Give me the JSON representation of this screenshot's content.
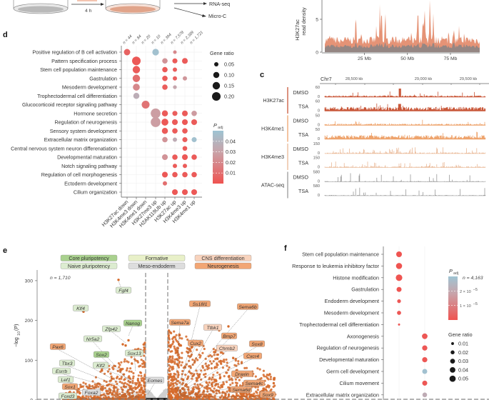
{
  "schematic": {
    "time_label": "4 h",
    "outputs": [
      "RNA-seq",
      "Micro-C"
    ]
  },
  "chart_data": [
    {
      "panel": "",
      "type": "area",
      "ylabel": [
        "H3K27ac",
        "read density"
      ],
      "yticks": [
        "0",
        "5"
      ],
      "ytick_values": [
        0,
        5
      ],
      "xticks": [
        "25 Mb",
        "50 Mb",
        "75 Mb"
      ],
      "xtick_values": [
        25,
        50,
        75
      ],
      "xlim": [
        2,
        92
      ],
      "colors": {
        "treated": "#e0805e",
        "control": "#8c8585"
      }
    },
    {
      "panel": "c",
      "type": "genome-tracks",
      "chrom": "Chr7",
      "xticks": [
        "28,500 kb",
        "29,000 kb",
        "29,500 kb"
      ],
      "groups": [
        {
          "mark": "H3K27ac",
          "color": "#c9583a",
          "tracks": [
            {
              "condition": "DMSO",
              "max": "60",
              "min": "0"
            },
            {
              "condition": "TSA",
              "max": "60",
              "min": "0"
            }
          ]
        },
        {
          "mark": "H3K4me1",
          "color": "#eea36c",
          "tracks": [
            {
              "condition": "DMSO",
              "max": "50",
              "min": "0"
            },
            {
              "condition": "TSA",
              "max": "50",
              "min": "0"
            }
          ]
        },
        {
          "mark": "H3K4me3",
          "color": "#e9b896",
          "tracks": [
            {
              "condition": "DMSO",
              "max": "150",
              "min": "0"
            },
            {
              "condition": "TSA",
              "max": "150",
              "min": "0"
            }
          ]
        },
        {
          "mark": "ATAC-seq",
          "color": "#9a9a9a",
          "tracks": [
            {
              "condition": "DMSO",
              "max": "580",
              "min": "0"
            },
            {
              "condition": "TSA",
              "max": "580",
              "min": "0"
            }
          ]
        }
      ]
    },
    {
      "panel": "d",
      "type": "scatter",
      "rows": [
        "Positive regulation of B cell activation",
        "Pattern specification process",
        "Stem cell population maintenance",
        "Gastrulation",
        "Mesoderm development",
        "Trophectodermal cell differentiation",
        "Glucocorticoid receptor signaling pathway",
        "Hormone secretion",
        "Regulation of neurogenesis",
        "Sensory system development",
        "Extracellular matrix organization",
        "Central nervous system neuron differenatiation",
        "Developmental maturation",
        "Notch signaling pathway",
        "Regulation of cell morphogenesis",
        "Ectoderm development",
        "Cilium organization"
      ],
      "columns": [
        "H3K27ac down",
        "H3K4me3 down",
        "H3K4me1 down",
        "H3K27me3 up",
        "H2AK119Ub up",
        "H3K27ac up",
        "H3K4me3 up",
        "H3K4me1 up"
      ],
      "n_labels": [
        "n = 44",
        "n = 84",
        "n = 20",
        "n = 10",
        "n = 394",
        "n = 7,578",
        "n = 2,389",
        "n = 1,721"
      ],
      "points": [
        {
          "row": 0,
          "col": 0,
          "gene_ratio": 0.11,
          "padj": 0.006
        },
        {
          "row": 0,
          "col": 3,
          "gene_ratio": 0.12,
          "padj": 0.048
        },
        {
          "row": 0,
          "col": 5,
          "gene_ratio": 0.035,
          "padj": 0.02
        },
        {
          "row": 1,
          "col": 1,
          "gene_ratio": 0.2,
          "padj": 0.002
        },
        {
          "row": 1,
          "col": 4,
          "gene_ratio": 0.08,
          "padj": 0.024
        },
        {
          "row": 1,
          "col": 5,
          "gene_ratio": 0.07,
          "padj": 0.003
        },
        {
          "row": 1,
          "col": 6,
          "gene_ratio": 0.09,
          "padj": 0.003
        },
        {
          "row": 2,
          "col": 1,
          "gene_ratio": 0.15,
          "padj": 0.003
        },
        {
          "row": 2,
          "col": 4,
          "gene_ratio": 0.08,
          "padj": 0.003
        },
        {
          "row": 2,
          "col": 5,
          "gene_ratio": 0.05,
          "padj": 0.004
        },
        {
          "row": 3,
          "col": 1,
          "gene_ratio": 0.15,
          "padj": 0.01
        },
        {
          "row": 3,
          "col": 4,
          "gene_ratio": 0.08,
          "padj": 0.003
        },
        {
          "row": 3,
          "col": 5,
          "gene_ratio": 0.05,
          "padj": 0.005
        },
        {
          "row": 3,
          "col": 6,
          "gene_ratio": 0.05,
          "padj": 0.025
        },
        {
          "row": 4,
          "col": 1,
          "gene_ratio": 0.13,
          "padj": 0.02
        },
        {
          "row": 4,
          "col": 4,
          "gene_ratio": 0.08,
          "padj": 0.004
        },
        {
          "row": 4,
          "col": 5,
          "gene_ratio": 0.04,
          "padj": 0.032
        },
        {
          "row": 5,
          "col": 1,
          "gene_ratio": 0.1,
          "padj": 0.036
        },
        {
          "row": 6,
          "col": 2,
          "gene_ratio": 0.17,
          "padj": 0.012
        },
        {
          "row": 7,
          "col": 3,
          "gene_ratio": 0.26,
          "padj": 0.028
        },
        {
          "row": 7,
          "col": 4,
          "gene_ratio": 0.1,
          "padj": 0.003
        },
        {
          "row": 7,
          "col": 5,
          "gene_ratio": 0.07,
          "padj": 0.004
        },
        {
          "row": 7,
          "col": 6,
          "gene_ratio": 0.09,
          "padj": 0.003
        },
        {
          "row": 7,
          "col": 7,
          "gene_ratio": 0.08,
          "padj": 0.027
        },
        {
          "row": 8,
          "col": 3,
          "gene_ratio": 0.26,
          "padj": 0.028
        },
        {
          "row": 8,
          "col": 4,
          "gene_ratio": 0.13,
          "padj": 0.002
        },
        {
          "row": 8,
          "col": 5,
          "gene_ratio": 0.09,
          "padj": 0.003
        },
        {
          "row": 8,
          "col": 6,
          "gene_ratio": 0.09,
          "padj": 0.002
        },
        {
          "row": 8,
          "col": 7,
          "gene_ratio": 0.09,
          "padj": 0.003
        },
        {
          "row": 9,
          "col": 4,
          "gene_ratio": 0.1,
          "padj": 0.003
        },
        {
          "row": 9,
          "col": 5,
          "gene_ratio": 0.08,
          "padj": 0.003
        },
        {
          "row": 9,
          "col": 6,
          "gene_ratio": 0.08,
          "padj": 0.003
        },
        {
          "row": 10,
          "col": 4,
          "gene_ratio": 0.08,
          "padj": 0.024
        },
        {
          "row": 10,
          "col": 5,
          "gene_ratio": 0.05,
          "padj": 0.035
        },
        {
          "row": 10,
          "col": 6,
          "gene_ratio": 0.07,
          "padj": 0.004
        },
        {
          "row": 10,
          "col": 7,
          "gene_ratio": 0.07,
          "padj": 0.048
        },
        {
          "row": 11,
          "col": 6,
          "gene_ratio": 0.06,
          "padj": 0.003
        },
        {
          "row": 12,
          "col": 4,
          "gene_ratio": 0.09,
          "padj": 0.024
        },
        {
          "row": 12,
          "col": 5,
          "gene_ratio": 0.08,
          "padj": 0.003
        },
        {
          "row": 12,
          "col": 6,
          "gene_ratio": 0.09,
          "padj": 0.002
        },
        {
          "row": 12,
          "col": 7,
          "gene_ratio": 0.08,
          "padj": 0.003
        },
        {
          "row": 13,
          "col": 5,
          "gene_ratio": 0.05,
          "padj": 0.003
        },
        {
          "row": 13,
          "col": 6,
          "gene_ratio": 0.05,
          "padj": 0.003
        },
        {
          "row": 14,
          "col": 4,
          "gene_ratio": 0.09,
          "padj": 0.002
        },
        {
          "row": 14,
          "col": 5,
          "gene_ratio": 0.08,
          "padj": 0.003
        },
        {
          "row": 14,
          "col": 6,
          "gene_ratio": 0.08,
          "padj": 0.003
        },
        {
          "row": 14,
          "col": 7,
          "gene_ratio": 0.08,
          "padj": 0.003
        },
        {
          "row": 15,
          "col": 4,
          "gene_ratio": 0.05,
          "padj": 0.01
        },
        {
          "row": 16,
          "col": 5,
          "gene_ratio": 0.09,
          "padj": 0.002
        },
        {
          "row": 16,
          "col": 6,
          "gene_ratio": 0.09,
          "padj": 0.002
        },
        {
          "row": 16,
          "col": 7,
          "gene_ratio": 0.09,
          "padj": 0.002
        }
      ],
      "size_legend": {
        "title": "Gene ratio",
        "values": [
          0.05,
          0.1,
          0.15,
          0.2
        ],
        "labels": [
          "0.05",
          "0.10",
          "0.15",
          "0.20"
        ]
      },
      "color_legend": {
        "title": "P",
        "subscript": "adj",
        "ticks": [
          "0.04",
          "0.03",
          "0.02",
          "0.01"
        ],
        "tick_values": [
          0.04,
          0.03,
          0.02,
          0.01
        ],
        "range": [
          0,
          0.05
        ]
      },
      "colors": {
        "low": "#ef5350",
        "mid": "#c9a3a9",
        "high": "#9ec4d3"
      }
    },
    {
      "panel": "e",
      "type": "scatter",
      "ylabel": "−log",
      "ylabel_sub": "10",
      "ylabel_tail": "(P)",
      "yticks": [
        "0",
        "100",
        "200",
        "300"
      ],
      "ytick_values": [
        0,
        100,
        200,
        300
      ],
      "ylim": [
        0,
        330
      ],
      "n_left": "n = 1,710",
      "n_right": "n = 4,163",
      "legend": [
        {
          "label": "Core pluripotency",
          "color": "#a9d18e"
        },
        {
          "label": "Formative",
          "color": "#e8f0c8"
        },
        {
          "label": "CNS differentiation",
          "color": "#f8d3bd"
        },
        {
          "label": "Naive pluripotency",
          "color": "#dcecd0"
        },
        {
          "label": "Meso-endoderm",
          "color": "#dddddd"
        },
        {
          "label": "Neurogenesis",
          "color": "#f2a674"
        }
      ],
      "point_colors": {
        "significant": "#d56a2a",
        "ns": "#cfcfcf"
      },
      "labeled_genes": [
        {
          "gene": "Fgf4",
          "group": "Naive pluripotency",
          "neglog10p": 300
        },
        {
          "gene": "Klf4",
          "group": "Naive pluripotency",
          "neglog10p": 222
        },
        {
          "gene": "Nanog",
          "group": "Core pluripotency",
          "neglog10p": 140
        },
        {
          "gene": "Zfp42",
          "group": "Naive pluripotency",
          "neglog10p": 140
        },
        {
          "gene": "Nr5a2",
          "group": "Naive pluripotency",
          "neglog10p": 20
        },
        {
          "gene": "Pax6",
          "group": "Neurogenesis",
          "neglog10p": 10
        },
        {
          "gene": "Sox2",
          "group": "Core pluripotency",
          "neglog10p": 30
        },
        {
          "gene": "Sox13",
          "group": "Naive pluripotency",
          "neglog10p": 20
        },
        {
          "gene": "Tbx3",
          "group": "Naive pluripotency",
          "neglog10p": 10
        },
        {
          "gene": "Klf2",
          "group": "Naive pluripotency",
          "neglog10p": 15
        },
        {
          "gene": "Esrrb",
          "group": "Naive pluripotency",
          "neglog10p": 8
        },
        {
          "gene": "Lef1",
          "group": "Naive pluripotency",
          "neglog10p": 6
        },
        {
          "gene": "Sox1",
          "group": "Neurogenesis",
          "neglog10p": 5
        },
        {
          "gene": "Foxa2",
          "group": "Meso-endoderm",
          "neglog10p": 4
        },
        {
          "gene": "Foxd3",
          "group": "Naive pluripotency",
          "neglog10p": 3
        },
        {
          "gene": "Eomes",
          "group": "Meso-endoderm",
          "neglog10p": 5
        },
        {
          "gene": "Ss18l1",
          "group": "Neurogenesis",
          "neglog10p": 30
        },
        {
          "gene": "Sema6b",
          "group": "Neurogenesis",
          "neglog10p": 30
        },
        {
          "gene": "Sema7a",
          "group": "Neurogenesis",
          "neglog10p": 30
        },
        {
          "gene": "Ttbk1",
          "group": "CNS differentiation",
          "neglog10p": 30
        },
        {
          "gene": "Bmp7",
          "group": "Neurogenesis",
          "neglog10p": 30
        },
        {
          "gene": "Cux2",
          "group": "Neurogenesis",
          "neglog10p": 30
        },
        {
          "gene": "Chrnb2",
          "group": "CNS differentiation",
          "neglog10p": 30
        },
        {
          "gene": "Sox8",
          "group": "Neurogenesis",
          "neglog10p": 20
        },
        {
          "gene": "Cxcr4",
          "group": "Neurogenesis",
          "neglog10p": 20
        },
        {
          "gene": "Draxin",
          "group": "Neurogenesis",
          "neglog10p": 15
        },
        {
          "gene": "Sema4c",
          "group": "Neurogenesis",
          "neglog10p": 10
        },
        {
          "gene": "Sema6d",
          "group": "Neurogenesis",
          "neglog10p": 8
        },
        {
          "gene": "Sox9",
          "group": "Neurogenesis",
          "neglog10p": 5
        }
      ]
    },
    {
      "panel": "f",
      "type": "scatter",
      "rows": [
        "Stem cell population maintenance",
        "Response to leukemia inhibitory factor",
        "Histone modification",
        "Gastrulation",
        "Endoderm development",
        "Mesoderm development",
        "Trophectodermal cell differentiation",
        "Axonogenesis",
        "Regulation of neurogenesis",
        "Developmental maturation",
        "Germ cell development",
        "Cilium movement",
        "Extracellular matrix organization"
      ],
      "points": [
        {
          "row": 0,
          "col": 0,
          "gene_ratio": 0.042,
          "padj": 2e-07
        },
        {
          "row": 1,
          "col": 0,
          "gene_ratio": 0.048,
          "padj": 2e-07
        },
        {
          "row": 2,
          "col": 0,
          "gene_ratio": 0.055,
          "padj": 2e-07
        },
        {
          "row": 3,
          "col": 0,
          "gene_ratio": 0.032,
          "padj": 2e-07
        },
        {
          "row": 4,
          "col": 0,
          "gene_ratio": 0.018,
          "padj": 1e-06
        },
        {
          "row": 5,
          "col": 0,
          "gene_ratio": 0.022,
          "padj": 1e-06
        },
        {
          "row": 6,
          "col": 0,
          "gene_ratio": 0.006,
          "padj": 1e-06
        },
        {
          "row": 7,
          "col": 1,
          "gene_ratio": 0.04,
          "padj": 1e-06
        },
        {
          "row": 8,
          "col": 1,
          "gene_ratio": 0.035,
          "padj": 1e-06
        },
        {
          "row": 9,
          "col": 1,
          "gene_ratio": 0.035,
          "padj": 1e-06
        },
        {
          "row": 10,
          "col": 1,
          "gene_ratio": 0.032,
          "padj": 2.9e-05
        },
        {
          "row": 11,
          "col": 1,
          "gene_ratio": 0.033,
          "padj": 1e-06
        },
        {
          "row": 12,
          "col": 1,
          "gene_ratio": 0.028,
          "padj": 2.1e-05
        }
      ],
      "size_legend": {
        "title": "Gene ratio",
        "values": [
          0.01,
          0.02,
          0.03,
          0.04,
          0.05
        ],
        "labels": [
          "0.01",
          "0.02",
          "0.03",
          "0.04",
          "0.05"
        ]
      },
      "color_legend": {
        "title": "P",
        "subscript": "adj",
        "ticks": [
          "2 × 10",
          "1 × 10"
        ],
        "tick_exp": "−5",
        "tick_values": [
          2e-05,
          1e-05
        ],
        "range": [
          0,
          3e-05
        ]
      }
    }
  ]
}
